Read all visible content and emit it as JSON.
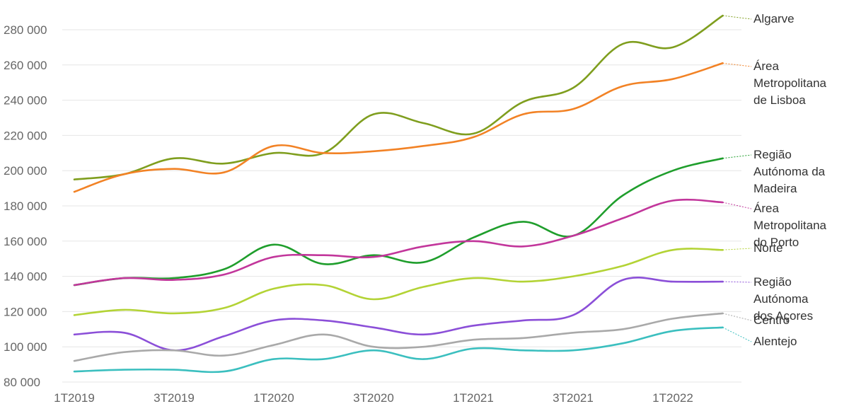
{
  "chart_data": {
    "type": "line",
    "title": "",
    "xlabel": "",
    "ylabel": "",
    "ylim": [
      80000,
      285000
    ],
    "y_ticks": [
      80000,
      100000,
      120000,
      140000,
      160000,
      180000,
      200000,
      220000,
      240000,
      260000,
      280000
    ],
    "y_tick_labels": [
      "80 000",
      "100 000",
      "120 000",
      "140 000",
      "160 000",
      "180 000",
      "200 000",
      "220 000",
      "240 000",
      "260 000",
      "280 000"
    ],
    "x_periods": [
      "1T2019",
      "2T2019",
      "3T2019",
      "4T2019",
      "1T2020",
      "2T2020",
      "3T2020",
      "4T2020",
      "1T2021",
      "2T2021",
      "3T2021",
      "4T2021",
      "1T2022",
      "2T2022"
    ],
    "x_tick_labels": [
      "1T2019",
      "3T2019",
      "1T2020",
      "3T2020",
      "1T2021",
      "3T2021",
      "1T2022"
    ],
    "grid": true,
    "legend": "direct labels at line ends (right)",
    "series": [
      {
        "name": "Algarve",
        "label_lines": [
          "Algarve"
        ],
        "color": "#7f9e1e",
        "values": [
          195000,
          198000,
          207000,
          204000,
          210000,
          210000,
          232000,
          227000,
          221000,
          239000,
          247000,
          272000,
          270000,
          288000
        ]
      },
      {
        "name": "Área Metropolitana de Lisboa",
        "label_lines": [
          "Área",
          "Metropolitana",
          "de Lisboa"
        ],
        "color": "#f28225",
        "values": [
          188000,
          198000,
          201000,
          199000,
          214000,
          210000,
          211000,
          214000,
          219000,
          232000,
          235000,
          248000,
          252000,
          261000
        ]
      },
      {
        "name": "Região Autónoma da Madeira",
        "label_lines": [
          "Região",
          "Autónoma da",
          "Madeira"
        ],
        "color": "#1f9e2c",
        "values": [
          135000,
          139000,
          139000,
          144000,
          158000,
          147000,
          152000,
          148000,
          162000,
          171000,
          163000,
          186000,
          200000,
          207000
        ]
      },
      {
        "name": "Área Metropolitana do Porto",
        "label_lines": [
          "Área",
          "Metropolitana",
          "do Porto"
        ],
        "color": "#c2369b",
        "values": [
          135000,
          139000,
          138000,
          141000,
          151000,
          152000,
          151000,
          157000,
          160000,
          157000,
          163000,
          173000,
          183000,
          182000
        ]
      },
      {
        "name": "Norte",
        "label_lines": [
          "Norte"
        ],
        "color": "#b3d335",
        "values": [
          118000,
          121000,
          119000,
          122000,
          133000,
          135000,
          127000,
          134000,
          139000,
          137000,
          140000,
          146000,
          155000,
          155000
        ]
      },
      {
        "name": "Região Autónoma dos Açores",
        "label_lines": [
          "Região",
          "Autónoma",
          "dos Açores"
        ],
        "color": "#8b4fd8",
        "values": [
          107000,
          108000,
          98000,
          106000,
          115000,
          115000,
          111000,
          107000,
          112000,
          115000,
          118000,
          138000,
          137000,
          137000
        ]
      },
      {
        "name": "Centro",
        "label_lines": [
          "Centro"
        ],
        "color": "#a9a9a9",
        "values": [
          92000,
          97000,
          98000,
          95000,
          101000,
          107000,
          100000,
          100000,
          104000,
          105000,
          108000,
          110000,
          116000,
          119000
        ]
      },
      {
        "name": "Alentejo",
        "label_lines": [
          "Alentejo"
        ],
        "color": "#3bbfbf",
        "values": [
          86000,
          87000,
          87000,
          86000,
          93000,
          93000,
          98000,
          93000,
          99000,
          98000,
          98000,
          102000,
          109000,
          111000
        ]
      }
    ]
  }
}
